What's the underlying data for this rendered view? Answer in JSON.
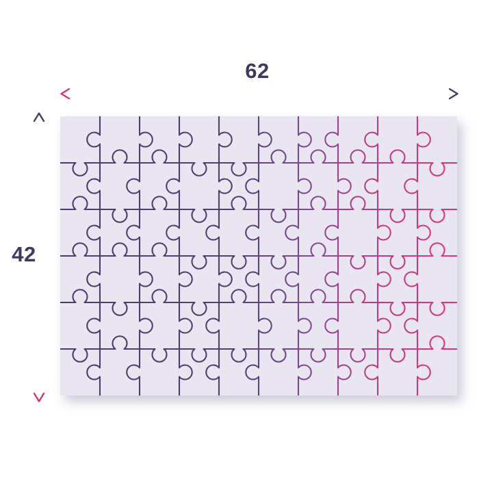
{
  "diagram": {
    "title": "puzzle-dimensions",
    "width_dimension": {
      "label": "62"
    },
    "height_dimension": {
      "label": "42"
    },
    "puzzle": {
      "columns": 10,
      "rows": 6,
      "pieces": 60,
      "seed": 11,
      "knob_radius": 10.5,
      "knob_neck": 6.5,
      "board_fill": "#e9e5f1",
      "line_gradient": [
        {
          "offset": 0,
          "color": "#473c6b"
        },
        {
          "offset": 0.45,
          "color": "#52406f"
        },
        {
          "offset": 0.62,
          "color": "#7d4a90"
        },
        {
          "offset": 0.8,
          "color": "#bc3d87"
        },
        {
          "offset": 1,
          "color": "#e8317e"
        }
      ]
    },
    "colors": {
      "page_background": "#ffffff",
      "text": "#3d3960",
      "arrow_navy": "#453b68",
      "arrow_pink": "#d9336f"
    }
  }
}
